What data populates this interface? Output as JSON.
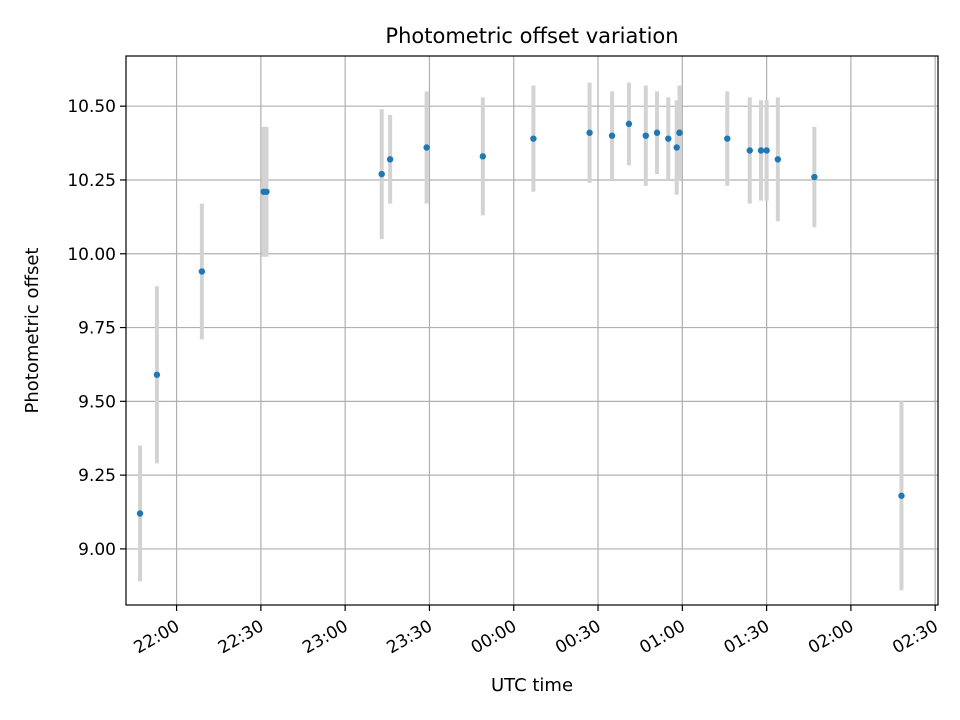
{
  "chart_data": {
    "type": "scatter",
    "title": "Photometric offset variation",
    "xlabel": "UTC time",
    "ylabel": "Photometric offset",
    "grid": true,
    "x_unit": "UTC time (HH:MM)",
    "xlim": [
      "21:42",
      "02:31"
    ],
    "ylim": [
      8.81,
      10.67
    ],
    "x_ticks": [
      "22:00",
      "22:30",
      "23:00",
      "23:30",
      "00:00",
      "00:30",
      "01:00",
      "01:30",
      "02:00",
      "02:30"
    ],
    "y_ticks": [
      "9.00",
      "9.25",
      "9.50",
      "9.75",
      "10.00",
      "10.25",
      "10.50"
    ],
    "colors": {
      "point": "#1f77b4",
      "errorbar": "#d3d3d3",
      "grid": "#b0b0b0"
    },
    "series": [
      {
        "x": [
          "21:47",
          "21:53",
          "22:09",
          "22:31",
          "22:32",
          "23:13",
          "23:16",
          "23:29",
          "23:49",
          "24:07",
          "24:27",
          "24:35",
          "24:41",
          "24:47",
          "24:51",
          "24:55",
          "24:58",
          "24:59",
          "24:59",
          "25:16",
          "25:24",
          "25:28",
          "25:30",
          "25:34",
          "25:47",
          "26:18"
        ],
        "y": [
          9.12,
          9.59,
          9.94,
          10.21,
          10.21,
          10.27,
          10.32,
          10.36,
          10.33,
          10.39,
          10.41,
          10.4,
          10.44,
          10.4,
          10.41,
          10.39,
          10.36,
          10.41,
          10.41,
          10.39,
          10.35,
          10.35,
          10.35,
          10.32,
          10.26,
          9.18
        ],
        "yerr": [
          0.23,
          0.3,
          0.23,
          0.22,
          0.22,
          0.22,
          0.15,
          0.19,
          0.2,
          0.18,
          0.17,
          0.15,
          0.14,
          0.17,
          0.14,
          0.14,
          0.16,
          0.16,
          0.16,
          0.16,
          0.18,
          0.17,
          0.17,
          0.21,
          0.17,
          0.32
        ]
      }
    ]
  }
}
